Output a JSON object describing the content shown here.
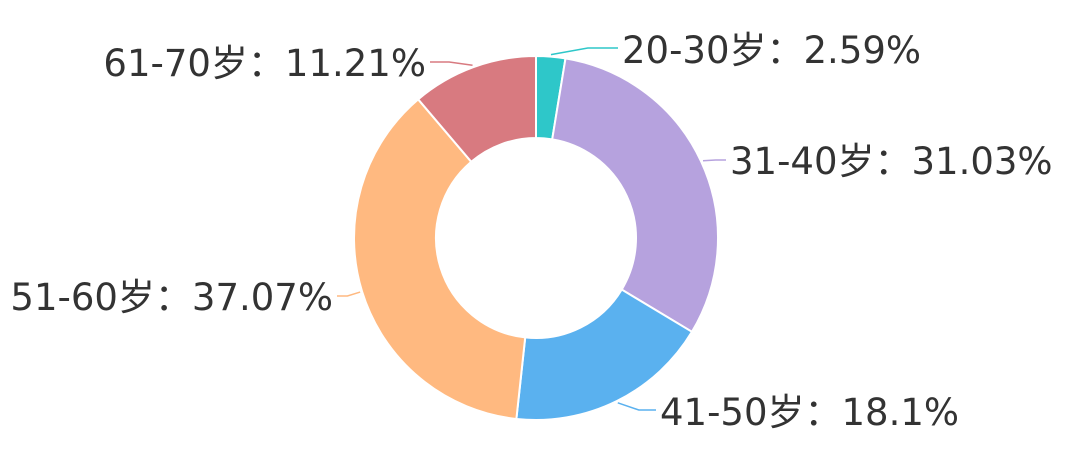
{
  "chart_data": {
    "type": "pie",
    "donut": true,
    "slices": [
      {
        "label": "20-30岁",
        "value": 2.59,
        "display": "20-30岁：2.59%",
        "color": "#2ec7c9"
      },
      {
        "label": "31-40岁",
        "value": 31.03,
        "display": "31-40岁：31.03%",
        "color": "#b6a2de"
      },
      {
        "label": "41-50岁",
        "value": 18.1,
        "display": "41-50岁：18.1%",
        "color": "#5ab1ef"
      },
      {
        "label": "51-60岁",
        "value": 37.07,
        "display": "51-60岁：37.07%",
        "color": "#ffb980"
      },
      {
        "label": "61-70岁",
        "value": 11.21,
        "display": "61-70岁：11.21%",
        "color": "#d87a80"
      }
    ]
  }
}
